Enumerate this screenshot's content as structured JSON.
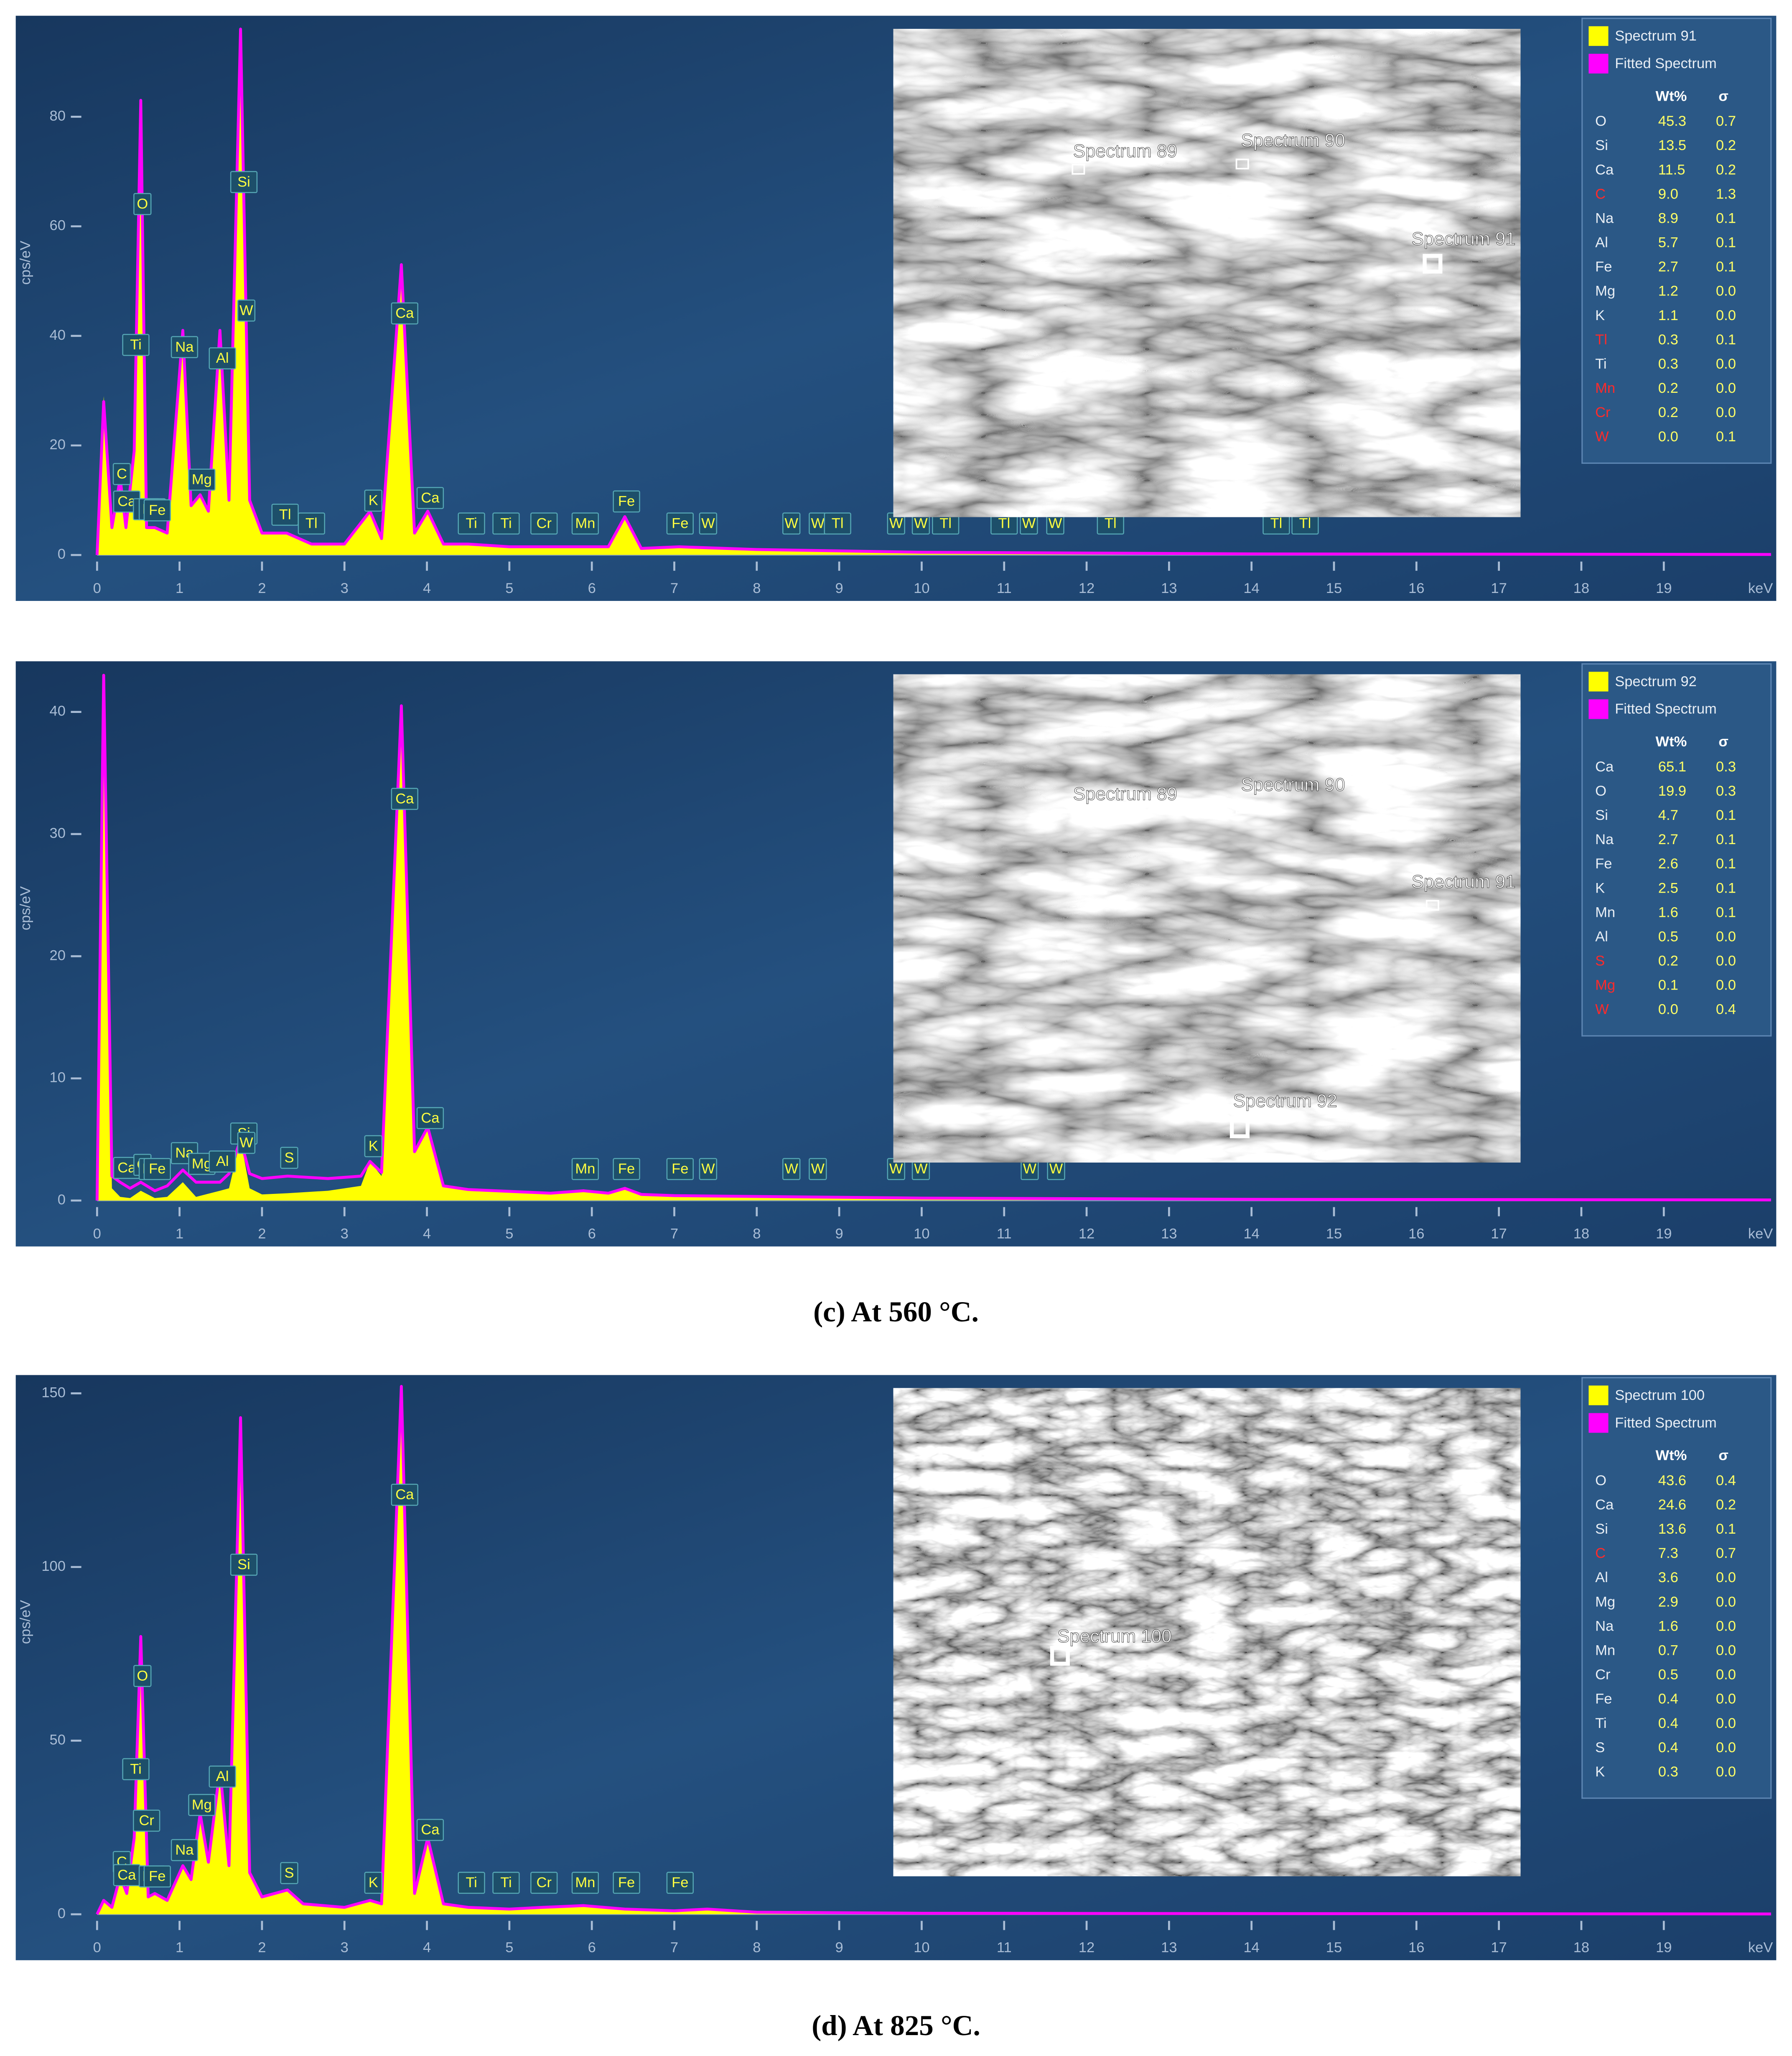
{
  "chart_data": [
    {
      "type": "area",
      "x_label": "keV",
      "y_label": "cps/eV",
      "x": [
        0,
        0.08,
        0.18,
        0.28,
        0.35,
        0.45,
        0.53,
        0.6,
        0.7,
        0.85,
        1.04,
        1.14,
        1.25,
        1.35,
        1.49,
        1.6,
        1.74,
        1.85,
        2.0,
        2.3,
        2.6,
        3.0,
        3.31,
        3.45,
        3.69,
        3.85,
        4.01,
        4.2,
        4.5,
        5.0,
        6.0,
        6.2,
        6.4,
        6.6,
        7.06,
        8,
        10,
        14,
        20.3
      ],
      "series": [
        {
          "name": "Spectrum 91",
          "color": "#ffff00",
          "values": [
            0,
            29,
            5,
            14,
            5,
            18,
            83,
            5,
            5,
            4,
            41,
            9,
            11,
            8,
            41,
            10,
            96,
            10,
            4,
            4,
            2,
            2,
            8,
            3,
            53,
            4,
            8,
            2,
            2,
            1.5,
            1.5,
            1.5,
            7,
            1.2,
            1.5,
            1,
            0.5,
            0.2,
            0.1
          ]
        },
        {
          "name": "Fitted Spectrum",
          "color": "#ff00ff",
          "values": [
            0,
            28,
            5,
            14,
            5,
            19,
            83,
            5,
            5,
            4,
            41,
            9,
            11,
            8,
            41,
            10,
            96,
            10,
            4,
            4,
            2,
            2,
            8,
            3,
            53,
            4,
            8,
            2,
            2,
            1.5,
            1.5,
            1.5,
            7,
            1.2,
            1.5,
            1,
            0.5,
            0.2,
            0.1
          ]
        }
      ],
      "xlim": [
        0,
        20.3
      ],
      "xticks": [
        0,
        1,
        2,
        3,
        4,
        5,
        6,
        7,
        8,
        9,
        10,
        11,
        12,
        13,
        14,
        15,
        16,
        17,
        18,
        19
      ],
      "ylim": [
        0,
        97
      ],
      "yticks": [
        0,
        20,
        40,
        60,
        80
      ],
      "peak_labels": {
        "labels": [
          "C",
          "Ca",
          "Ti",
          "O",
          "Cr",
          "Mn",
          "Fe",
          "Na",
          "Mg",
          "Al",
          "Si",
          "W",
          "Tl",
          "Tl",
          "K",
          "Ca",
          "Ca",
          "Ti",
          "Ti",
          "Cr",
          "Mn",
          "Fe",
          "Fe",
          "W",
          "W",
          "W",
          "Tl",
          "W",
          "W",
          "Tl",
          "Tl",
          "W",
          "W",
          "Tl",
          "Tl",
          "Tl"
        ],
        "x": [
          0.3,
          0.36,
          0.47,
          0.55,
          0.6,
          0.67,
          0.73,
          1.06,
          1.27,
          1.52,
          1.78,
          1.81,
          2.28,
          2.6,
          3.35,
          3.73,
          4.04,
          4.54,
          4.96,
          5.42,
          5.92,
          6.42,
          7.07,
          7.41,
          8.42,
          8.74,
          8.98,
          9.69,
          9.99,
          10.29,
          11.0,
          11.3,
          11.62,
          12.29,
          14.3,
          14.65
        ]
      },
      "image": {
        "markers": [
          "Spectrum 89",
          "Spectrum 90",
          "Spectrum 91"
        ]
      },
      "table": {
        "header": [
          "Wt%",
          "σ"
        ],
        "flagged_color": "#ff2a2a",
        "flagged": [
          3,
          9,
          11,
          12,
          13
        ],
        "rows": [
          [
            "O",
            "45.3",
            "0.7"
          ],
          [
            "Si",
            "13.5",
            "0.2"
          ],
          [
            "Ca",
            "11.5",
            "0.2"
          ],
          [
            "C",
            "9.0",
            "1.3"
          ],
          [
            "Na",
            "8.9",
            "0.1"
          ],
          [
            "Al",
            "5.7",
            "0.1"
          ],
          [
            "Fe",
            "2.7",
            "0.1"
          ],
          [
            "Mg",
            "1.2",
            "0.0"
          ],
          [
            "K",
            "1.1",
            "0.0"
          ],
          [
            "Tl",
            "0.3",
            "0.1"
          ],
          [
            "Ti",
            "0.3",
            "0.0"
          ],
          [
            "Mn",
            "0.2",
            "0.0"
          ],
          [
            "Cr",
            "0.2",
            "0.0"
          ],
          [
            "W",
            "0.0",
            "0.1"
          ]
        ]
      }
    },
    {
      "type": "area",
      "x_label": "keV",
      "y_label": "cps/eV",
      "x": [
        0,
        0.08,
        0.18,
        0.28,
        0.4,
        0.53,
        0.7,
        0.85,
        1.04,
        1.2,
        1.49,
        1.6,
        1.74,
        1.85,
        2.0,
        2.31,
        2.8,
        3.2,
        3.31,
        3.45,
        3.69,
        3.85,
        4.01,
        4.2,
        4.5,
        5.5,
        5.9,
        6.2,
        6.4,
        6.6,
        7.0,
        10,
        14,
        20.3
      ],
      "series": [
        {
          "name": "Spectrum 92",
          "color": "#ffff00",
          "values": [
            0,
            43,
            1,
            0.3,
            0.2,
            0.8,
            0.2,
            0.3,
            1.5,
            0.3,
            0.8,
            1,
            5,
            1,
            0.5,
            0.6,
            0.8,
            1.2,
            3.2,
            2,
            40.5,
            4,
            6,
            1.2,
            0.9,
            0.6,
            0.8,
            0.6,
            1,
            0.5,
            0.4,
            0.2,
            0.1,
            0.05
          ]
        },
        {
          "name": "Fitted Spectrum",
          "color": "#ff00ff",
          "values": [
            0,
            43,
            2,
            1.5,
            1,
            1.5,
            0.8,
            1.2,
            2.5,
            1.5,
            1.5,
            2.2,
            5,
            2.2,
            1.8,
            2,
            1.8,
            2,
            3.2,
            2.3,
            40.5,
            4,
            6,
            1.2,
            0.9,
            0.6,
            0.8,
            0.6,
            1,
            0.5,
            0.4,
            0.2,
            0.1,
            0.05
          ]
        }
      ],
      "xlim": [
        0,
        20.3
      ],
      "xticks": [
        0,
        1,
        2,
        3,
        4,
        5,
        6,
        7,
        8,
        9,
        10,
        11,
        12,
        13,
        14,
        15,
        16,
        17,
        18,
        19
      ],
      "ylim": [
        0,
        43.5
      ],
      "yticks": [
        0,
        10,
        20,
        30,
        40
      ],
      "peak_labels": {
        "labels": [
          "Ca",
          "O",
          "Mn",
          "Fe",
          "Na",
          "Mg",
          "Al",
          "Si",
          "W",
          "S",
          "K",
          "Ca",
          "Ca",
          "Mn",
          "Fe",
          "Fe",
          "W",
          "W",
          "W",
          "W",
          "W",
          "W",
          "W"
        ],
        "x": [
          0.36,
          0.55,
          0.67,
          0.73,
          1.06,
          1.27,
          1.52,
          1.78,
          1.81,
          2.33,
          3.35,
          3.73,
          4.04,
          5.92,
          6.42,
          7.07,
          7.41,
          8.42,
          8.74,
          9.69,
          9.99,
          11.31,
          11.63
        ]
      },
      "image": {
        "markers": [
          "Spectrum 89",
          "Spectrum 90",
          "Spectrum 91",
          "Spectrum 92"
        ]
      },
      "table": {
        "header": [
          "Wt%",
          "σ"
        ],
        "flagged_color": "#ff2a2a",
        "flagged": [
          8,
          9,
          10
        ],
        "rows": [
          [
            "Ca",
            "65.1",
            "0.3"
          ],
          [
            "O",
            "19.9",
            "0.3"
          ],
          [
            "Si",
            "4.7",
            "0.1"
          ],
          [
            "Na",
            "2.7",
            "0.1"
          ],
          [
            "Fe",
            "2.6",
            "0.1"
          ],
          [
            "K",
            "2.5",
            "0.1"
          ],
          [
            "Mn",
            "1.6",
            "0.1"
          ],
          [
            "Al",
            "0.5",
            "0.0"
          ],
          [
            "S",
            "0.2",
            "0.0"
          ],
          [
            "Mg",
            "0.1",
            "0.0"
          ],
          [
            "W",
            "0.0",
            "0.4"
          ]
        ]
      }
    },
    {
      "type": "area",
      "x_label": "keV",
      "y_label": "cps/eV",
      "x": [
        0,
        0.08,
        0.18,
        0.28,
        0.36,
        0.45,
        0.53,
        0.62,
        0.7,
        0.85,
        1.04,
        1.14,
        1.25,
        1.35,
        1.49,
        1.6,
        1.74,
        1.85,
        2.0,
        2.31,
        2.5,
        3.0,
        3.31,
        3.45,
        3.69,
        3.85,
        4.01,
        4.2,
        4.5,
        5.0,
        5.4,
        5.9,
        6.4,
        7.0,
        7.4,
        8,
        10,
        14,
        20.3
      ],
      "series": [
        {
          "name": "Spectrum 100",
          "color": "#ffff00",
          "values": [
            0,
            4,
            2,
            11,
            6,
            22,
            80,
            5,
            6,
            4,
            14,
            10,
            29,
            15,
            42,
            14,
            143,
            12,
            5,
            7,
            3,
            2,
            4,
            3,
            152,
            6,
            22,
            3,
            2,
            1.5,
            2,
            2.5,
            1.5,
            1,
            1.5,
            0.6,
            0.3,
            0.2,
            0.1
          ]
        },
        {
          "name": "Fitted Spectrum",
          "color": "#ff00ff",
          "values": [
            0,
            4,
            2,
            11,
            6,
            22,
            80,
            5,
            6,
            4,
            14,
            10,
            29,
            15,
            42,
            14,
            143,
            12,
            5,
            7,
            3,
            2,
            4,
            3,
            152,
            6,
            22,
            3,
            2,
            1.5,
            2,
            2.5,
            1.5,
            1,
            1.5,
            0.6,
            0.3,
            0.2,
            0.1
          ]
        }
      ],
      "xlim": [
        0,
        20.3
      ],
      "xticks": [
        0,
        1,
        2,
        3,
        4,
        5,
        6,
        7,
        8,
        9,
        10,
        11,
        12,
        13,
        14,
        15,
        16,
        17,
        18,
        19
      ],
      "ylim": [
        0,
        153
      ],
      "yticks": [
        0,
        50,
        100,
        150
      ],
      "peak_labels": {
        "labels": [
          "C",
          "Ca",
          "Ti",
          "Cr",
          "O",
          "Mn",
          "Fe",
          "Na",
          "Mg",
          "Al",
          "Si",
          "S",
          "K",
          "Ca",
          "Ca",
          "Ti",
          "Ti",
          "Cr",
          "Mn",
          "Fe",
          "Fe"
        ],
        "x": [
          0.3,
          0.36,
          0.47,
          0.6,
          0.55,
          0.67,
          0.73,
          1.06,
          1.27,
          1.52,
          1.78,
          2.33,
          3.35,
          3.73,
          4.04,
          4.54,
          4.96,
          5.42,
          5.92,
          6.42,
          7.07
        ]
      },
      "image": {
        "markers": [
          "Spectrum 100"
        ]
      },
      "table": {
        "header": [
          "Wt%",
          "σ"
        ],
        "flagged_color": "#ff2a2a",
        "flagged": [
          3
        ],
        "rows": [
          [
            "O",
            "43.6",
            "0.4"
          ],
          [
            "Ca",
            "24.6",
            "0.2"
          ],
          [
            "Si",
            "13.6",
            "0.1"
          ],
          [
            "C",
            "7.3",
            "0.7"
          ],
          [
            "Al",
            "3.6",
            "0.0"
          ],
          [
            "Mg",
            "2.9",
            "0.0"
          ],
          [
            "Na",
            "1.6",
            "0.0"
          ],
          [
            "Mn",
            "0.7",
            "0.0"
          ],
          [
            "Cr",
            "0.5",
            "0.0"
          ],
          [
            "Fe",
            "0.4",
            "0.0"
          ],
          [
            "Ti",
            "0.4",
            "0.0"
          ],
          [
            "S",
            "0.4",
            "0.0"
          ],
          [
            "K",
            "0.3",
            "0.0"
          ]
        ]
      }
    }
  ],
  "captions": [
    "(c) At 560 °C.",
    "(d) At 825 °C."
  ]
}
